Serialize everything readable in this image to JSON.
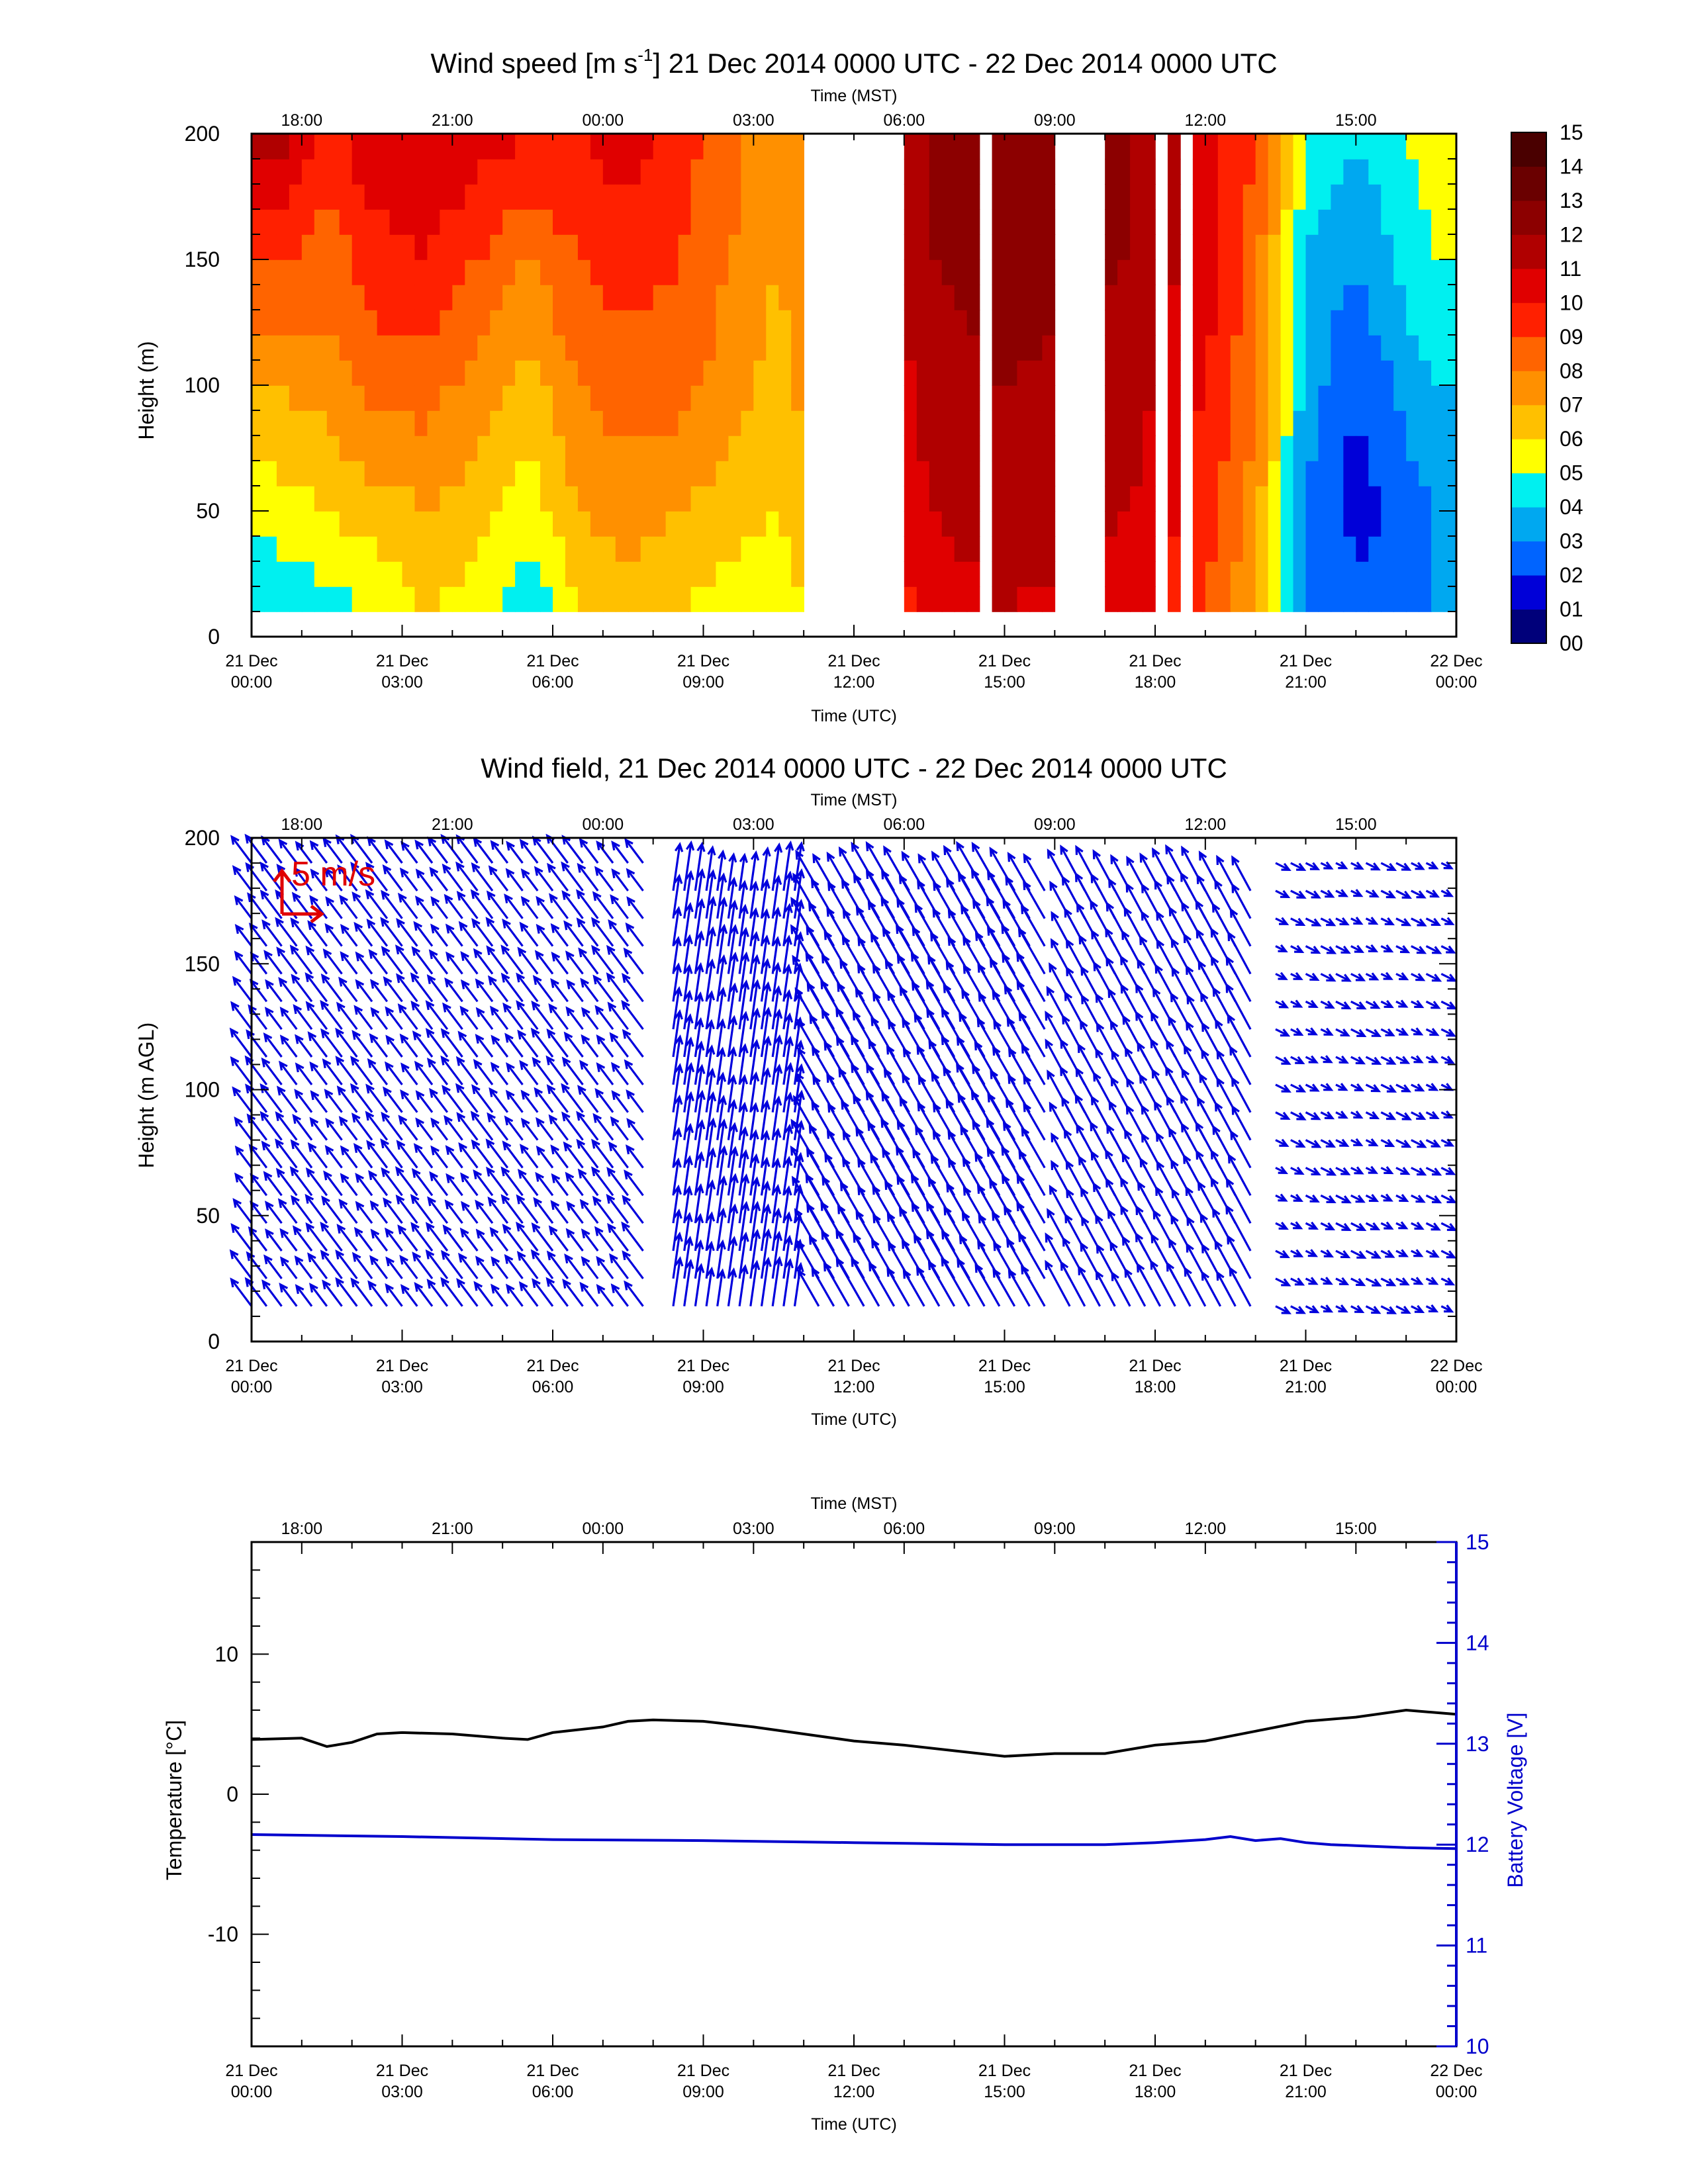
{
  "panels": {
    "speed": {
      "title_main": "Wind speed [m s",
      "title_sup": "-1",
      "title_rest": "] 21 Dec 2014 0000 UTC - 22 Dec 2014 0000 UTC",
      "ylabel": "Height (m)"
    },
    "field": {
      "title": "Wind field, 21 Dec 2014 0000 UTC - 22 Dec 2014 0000 UTC",
      "ylabel": "Height (m AGL)",
      "scale_label": "5 m/s"
    },
    "temp": {
      "ylabel": "Temperature [°C]",
      "y2label": "Battery Voltage [V]"
    }
  },
  "axes": {
    "top_title": "Time (MST)",
    "bottom_title": "Time (UTC)",
    "top_ticks": [
      "18:00",
      "21:00",
      "00:00",
      "03:00",
      "06:00",
      "09:00",
      "12:00",
      "15:00"
    ],
    "bottom_ticks": [
      {
        "l1": "21 Dec",
        "l2": "00:00"
      },
      {
        "l1": "21 Dec",
        "l2": "03:00"
      },
      {
        "l1": "21 Dec",
        "l2": "06:00"
      },
      {
        "l1": "21 Dec",
        "l2": "09:00"
      },
      {
        "l1": "21 Dec",
        "l2": "12:00"
      },
      {
        "l1": "21 Dec",
        "l2": "15:00"
      },
      {
        "l1": "21 Dec",
        "l2": "18:00"
      },
      {
        "l1": "21 Dec",
        "l2": "21:00"
      },
      {
        "l1": "22 Dec",
        "l2": "00:00"
      }
    ],
    "height_ticks": [
      "0",
      "50",
      "100",
      "150",
      "200"
    ],
    "temp_ticks": [
      "-10",
      "0",
      "10"
    ],
    "volt_ticks": [
      "10",
      "11",
      "12",
      "13",
      "14",
      "15"
    ]
  },
  "colorbar": {
    "labels": [
      "00",
      "01",
      "02",
      "03",
      "04",
      "05",
      "06",
      "07",
      "08",
      "09",
      "10",
      "11",
      "12",
      "13",
      "14",
      "15"
    ],
    "colors": [
      "#00007a",
      "#0000d8",
      "#0064ff",
      "#00a8f0",
      "#00f0f0",
      "#ffff00",
      "#ffc000",
      "#ff9000",
      "#ff6400",
      "#ff2000",
      "#e00000",
      "#b00000",
      "#8c0000",
      "#6a0000",
      "#4a0000"
    ]
  },
  "chart_data": [
    {
      "type": "heatmap",
      "title": "Wind speed [m s-1] 21 Dec 2014 0000 UTC - 22 Dec 2014 0000 UTC",
      "xlabel": "Time (UTC)",
      "x2label": "Time (MST)",
      "ylabel": "Height (m)",
      "xlim_hours": [
        0,
        24
      ],
      "ylim": [
        0,
        200
      ],
      "zlim": [
        0,
        15
      ],
      "heights_m": [
        10,
        50,
        100,
        150,
        200
      ],
      "columns": [
        {
          "hour": 0.5,
          "speeds": [
            4.0,
            5.5,
            7.0,
            9.0,
            11.5
          ]
        },
        {
          "hour": 1.5,
          "speeds": [
            4.5,
            6.0,
            7.5,
            8.5,
            9.5
          ]
        },
        {
          "hour": 2.5,
          "speeds": [
            5.0,
            6.5,
            8.5,
            9.5,
            11.0
          ]
        },
        {
          "hour": 3.5,
          "speeds": [
            6.0,
            7.0,
            8.5,
            10.0,
            11.0
          ]
        },
        {
          "hour": 4.5,
          "speeds": [
            5.5,
            6.5,
            7.5,
            9.0,
            10.5
          ]
        },
        {
          "hour": 5.5,
          "speeds": [
            4.0,
            5.5,
            6.5,
            8.0,
            10.0
          ]
        },
        {
          "hour": 6.5,
          "speeds": [
            6.0,
            7.0,
            8.0,
            9.0,
            10.0
          ]
        },
        {
          "hour": 7.5,
          "speeds": [
            6.5,
            7.5,
            8.5,
            9.5,
            10.5
          ]
        },
        {
          "hour": 8.5,
          "speeds": [
            6.0,
            7.0,
            8.5,
            9.0,
            9.5
          ]
        },
        {
          "hour": 9.5,
          "speeds": [
            5.5,
            6.5,
            7.5,
            8.0,
            8.5
          ]
        },
        {
          "hour": 10.5,
          "speeds": [
            5.0,
            6.0,
            6.5,
            7.0,
            7.0
          ]
        },
        {
          "hour": 13.5,
          "speeds": [
            10.5,
            11.0,
            11.5,
            12.0,
            12.0
          ]
        },
        {
          "hour": 15.0,
          "speeds": [
            11.0,
            11.5,
            12.0,
            12.5,
            12.5
          ]
        },
        {
          "hour": 17.5,
          "speeds": [
            10.5,
            11.0,
            11.5,
            12.0,
            12.0
          ]
        },
        {
          "hour": 19.0,
          "speeds": [
            9.0,
            9.5,
            10.0,
            10.5,
            10.5
          ]
        },
        {
          "hour": 20.0,
          "speeds": [
            7.0,
            7.5,
            8.0,
            8.5,
            9.0
          ]
        },
        {
          "hour": 21.0,
          "speeds": [
            3.0,
            3.0,
            3.5,
            4.0,
            5.0
          ]
        },
        {
          "hour": 22.0,
          "speeds": [
            2.5,
            1.5,
            2.0,
            3.0,
            4.0
          ]
        },
        {
          "hour": 23.5,
          "speeds": [
            3.0,
            3.0,
            4.0,
            5.0,
            5.5
          ]
        }
      ],
      "missing_hours": [
        [
          10.9,
          13.0
        ],
        [
          14.4,
          14.7
        ],
        [
          16.0,
          17.0
        ],
        [
          17.9,
          18.2
        ],
        [
          18.5,
          18.8
        ]
      ]
    },
    {
      "type": "quiver",
      "title": "Wind field, 21 Dec 2014 0000 UTC - 22 Dec 2014 0000 UTC",
      "xlabel": "Time (UTC)",
      "ylabel": "Height (m AGL)",
      "xlim_hours": [
        0,
        24
      ],
      "ylim": [
        0,
        200
      ],
      "reference_vector_ms": 5,
      "segments": [
        {
          "from_hour": 0.0,
          "to_hour": 8.0,
          "u_ms": -3.0,
          "v_ms": 4.0
        },
        {
          "from_hour": 8.4,
          "to_hour": 10.9,
          "u_ms": 1.0,
          "v_ms": 7.0
        },
        {
          "from_hour": 11.3,
          "to_hour": 16.0,
          "u_ms": -4.0,
          "v_ms": 7.0
        },
        {
          "from_hour": 16.3,
          "to_hour": 20.0,
          "u_ms": -3.5,
          "v_ms": 6.5
        },
        {
          "from_hour": 20.4,
          "to_hour": 24.0,
          "u_ms": 2.0,
          "v_ms": -1.0
        }
      ]
    },
    {
      "type": "line",
      "xlabel": "Time (UTC)",
      "ylabel": "Temperature [°C]",
      "y2label": "Battery Voltage [V]",
      "xlim_hours": [
        0,
        24
      ],
      "ylim": [
        -18,
        18
      ],
      "y2lim": [
        10,
        15
      ],
      "series": [
        {
          "name": "Temperature",
          "axis": "left",
          "color": "#000000",
          "x": [
            0,
            1,
            1.5,
            2,
            2.5,
            3,
            4,
            5,
            5.5,
            6,
            7,
            7.5,
            8,
            9,
            10,
            11,
            12,
            13,
            14,
            15,
            16,
            17,
            18,
            19,
            20,
            21,
            22,
            23,
            24
          ],
          "y": [
            3.9,
            4.0,
            3.4,
            3.7,
            4.3,
            4.4,
            4.3,
            4.0,
            3.9,
            4.4,
            4.8,
            5.2,
            5.3,
            5.2,
            4.8,
            4.3,
            3.8,
            3.5,
            3.1,
            2.7,
            2.9,
            2.9,
            3.5,
            3.8,
            4.5,
            5.2,
            5.5,
            6.0,
            5.7
          ]
        },
        {
          "name": "Battery Voltage",
          "axis": "right",
          "color": "#0000cc",
          "x": [
            0,
            3,
            6,
            9,
            12,
            15,
            17,
            18,
            19,
            19.5,
            20,
            20.5,
            21,
            21.5,
            22,
            22.5,
            23,
            24
          ],
          "y": [
            12.1,
            12.08,
            12.05,
            12.04,
            12.02,
            12.0,
            12.0,
            12.02,
            12.05,
            12.08,
            12.04,
            12.06,
            12.02,
            12.0,
            11.99,
            11.98,
            11.97,
            11.96
          ]
        }
      ]
    }
  ]
}
